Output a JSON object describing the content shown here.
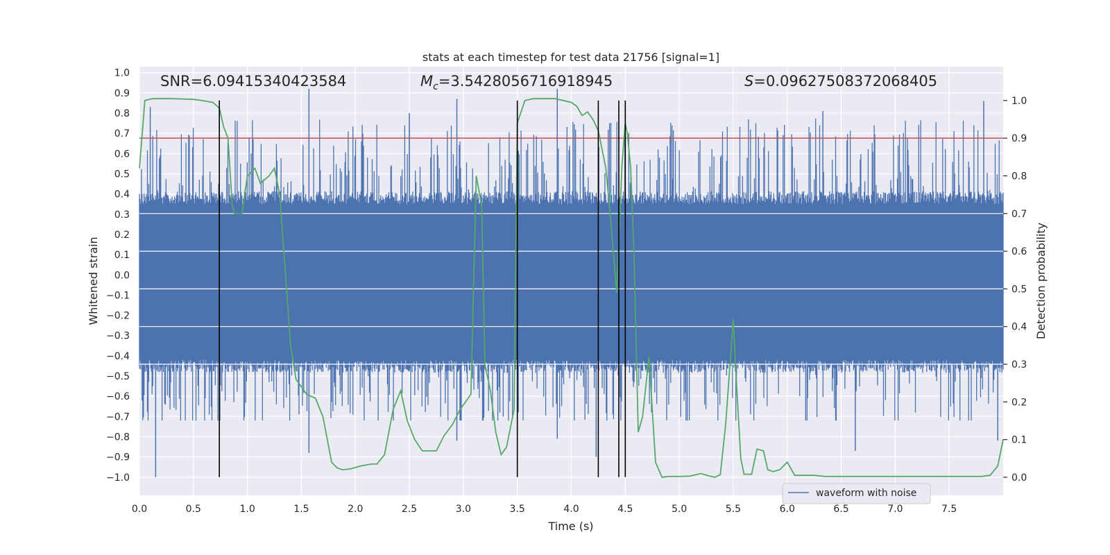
{
  "chart_data": {
    "type": "line",
    "title": "stats at each timestep for test data 21756 [signal=1]",
    "xlabel": "Time (s)",
    "ylabel": "Whitened strain",
    "y2label": "Detection probability",
    "xlim": [
      0.0,
      8.0
    ],
    "ylim": [
      -1.09,
      1.03
    ],
    "y2lim": [
      -0.048,
      1.09
    ],
    "xticks": [
      "0.0",
      "0.5",
      "1.0",
      "1.5",
      "2.0",
      "2.5",
      "3.0",
      "3.5",
      "4.0",
      "4.5",
      "5.0",
      "5.5",
      "6.0",
      "6.5",
      "7.0",
      "7.5"
    ],
    "xtick_values": [
      0,
      0.5,
      1,
      1.5,
      2,
      2.5,
      3,
      3.5,
      4,
      4.5,
      5,
      5.5,
      6,
      6.5,
      7,
      7.5
    ],
    "yticks": [
      "1.0",
      "0.9",
      "0.8",
      "0.7",
      "0.6",
      "0.5",
      "0.4",
      "0.3",
      "0.2",
      "0.1",
      "0.0",
      "−0.1",
      "−0.2",
      "−0.3",
      "−0.4",
      "−0.5",
      "−0.6",
      "−0.7",
      "−0.8",
      "−0.9",
      "−1.0"
    ],
    "ytick_values": [
      1,
      0.9,
      0.8,
      0.7,
      0.6,
      0.5,
      0.4,
      0.3,
      0.2,
      0.1,
      0,
      -0.1,
      -0.2,
      -0.3,
      -0.4,
      -0.5,
      -0.6,
      -0.7,
      -0.8,
      -0.9,
      -1
    ],
    "y2ticks": [
      "1.0",
      "0.9",
      "0.8",
      "0.7",
      "0.6",
      "0.5",
      "0.4",
      "0.3",
      "0.2",
      "0.1",
      "0.0"
    ],
    "y2tick_values": [
      1,
      0.9,
      0.8,
      0.7,
      0.6,
      0.5,
      0.4,
      0.3,
      0.2,
      0.1,
      0
    ],
    "annotations": {
      "snr": "SNR=6.09415340423584",
      "mc_symbol": "M",
      "mc_sub": "c",
      "mc_value": "=3.5428056716918945",
      "s_symbol": "S",
      "s_value": "=0.09627508372068405"
    },
    "legend": {
      "label": "waveform with noise",
      "placement": "lower-right"
    },
    "threshold_prob": 0.9,
    "event_lines_x": [
      0.74,
      3.5,
      4.25,
      4.44,
      4.5
    ],
    "waveform": {
      "name": "waveform with noise",
      "x_range": [
        0.0,
        8.0
      ],
      "envelope_upper_typical": 0.35,
      "envelope_lower_typical": -0.42,
      "notable_spikes": [
        {
          "x": 0.1,
          "y": 0.83
        },
        {
          "x": 0.15,
          "y": -1.0
        },
        {
          "x": 1.57,
          "y": 0.92
        },
        {
          "x": 1.57,
          "y": -0.88
        },
        {
          "x": 2.5,
          "y": 0.8
        },
        {
          "x": 2.94,
          "y": 0.87
        },
        {
          "x": 2.94,
          "y": -0.82
        },
        {
          "x": 3.87,
          "y": 0.92
        },
        {
          "x": 3.87,
          "y": -0.81
        },
        {
          "x": 4.23,
          "y": -0.9
        },
        {
          "x": 6.33,
          "y": 0.81
        },
        {
          "x": 6.63,
          "y": -0.87
        },
        {
          "x": 7.82,
          "y": 0.86
        },
        {
          "x": 7.95,
          "y": -0.82
        }
      ]
    },
    "series": [
      {
        "name": "detection probability",
        "axis": "right",
        "x": [
          0.0,
          0.05,
          0.12,
          0.3,
          0.5,
          0.58,
          0.68,
          0.74,
          0.78,
          0.82,
          0.86,
          0.88,
          0.95,
          1.0,
          1.07,
          1.12,
          1.2,
          1.25,
          1.3,
          1.4,
          1.45,
          1.55,
          1.63,
          1.7,
          1.78,
          1.83,
          1.88,
          1.95,
          2.05,
          2.15,
          2.2,
          2.27,
          2.35,
          2.42,
          2.48,
          2.55,
          2.62,
          2.7,
          2.75,
          2.82,
          2.9,
          2.97,
          3.07,
          3.12,
          3.17,
          3.2,
          3.25,
          3.3,
          3.35,
          3.4,
          3.47,
          3.5,
          3.57,
          3.65,
          3.75,
          3.85,
          4.0,
          4.05,
          4.1,
          4.15,
          4.2,
          4.25,
          4.32,
          4.36,
          4.42,
          4.47,
          4.5,
          4.52,
          4.55,
          4.58,
          4.62,
          4.66,
          4.72,
          4.78,
          4.84,
          4.9,
          5.0,
          5.1,
          5.2,
          5.28,
          5.33,
          5.38,
          5.43,
          5.5,
          5.53,
          5.57,
          5.6,
          5.67,
          5.72,
          5.78,
          5.82,
          5.87,
          5.93,
          6.0,
          6.07,
          6.15,
          6.25,
          6.35,
          6.45,
          6.55,
          6.65,
          6.75,
          6.85,
          7.0,
          7.15,
          7.25,
          7.35,
          7.5,
          7.65,
          7.8,
          7.88,
          7.95,
          8.0
        ],
        "y": [
          0.82,
          1.0,
          1.005,
          1.005,
          1.003,
          1.0,
          0.995,
          0.98,
          0.93,
          0.9,
          0.72,
          0.7,
          0.7,
          0.8,
          0.82,
          0.78,
          0.8,
          0.82,
          0.75,
          0.35,
          0.26,
          0.22,
          0.21,
          0.16,
          0.04,
          0.025,
          0.02,
          0.022,
          0.03,
          0.035,
          0.035,
          0.06,
          0.18,
          0.23,
          0.15,
          0.1,
          0.07,
          0.07,
          0.07,
          0.11,
          0.14,
          0.18,
          0.22,
          0.8,
          0.72,
          0.3,
          0.23,
          0.12,
          0.06,
          0.08,
          0.18,
          0.94,
          1.0,
          1.005,
          1.005,
          1.005,
          0.995,
          0.985,
          0.96,
          0.97,
          0.95,
          0.92,
          0.82,
          0.7,
          0.49,
          0.83,
          0.94,
          0.91,
          0.82,
          0.6,
          0.12,
          0.16,
          0.32,
          0.04,
          0.0,
          0.002,
          0.002,
          0.003,
          0.01,
          0.003,
          0.0,
          0.007,
          0.14,
          0.42,
          0.25,
          0.05,
          0.008,
          0.008,
          0.075,
          0.07,
          0.02,
          0.015,
          0.02,
          0.04,
          0.005,
          0.005,
          0.005,
          0.002,
          0.002,
          0.002,
          0.002,
          0.002,
          0.002,
          0.002,
          0.002,
          0.002,
          0.002,
          0.002,
          0.002,
          0.002,
          0.005,
          0.03,
          0.1
        ]
      }
    ]
  }
}
